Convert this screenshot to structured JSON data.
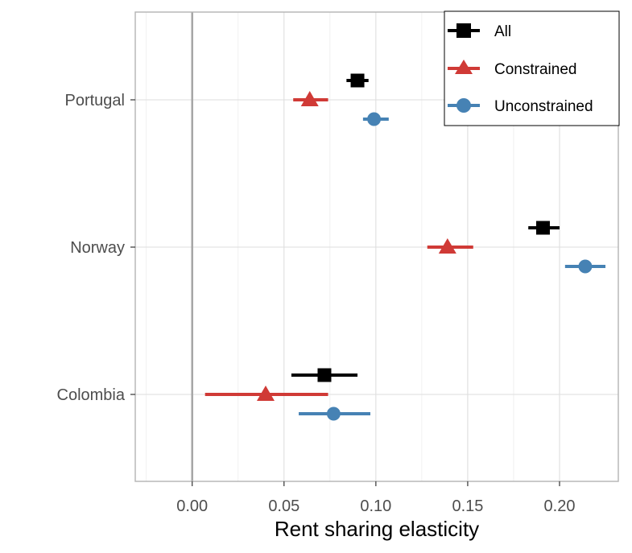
{
  "chart_data": {
    "type": "forest",
    "title": "",
    "xlabel": "Rent sharing elasticity",
    "ylabel": "",
    "xlim": [
      -0.031,
      0.232
    ],
    "x_ticks": [
      0.0,
      0.05,
      0.1,
      0.15,
      0.2
    ],
    "x_tick_labels": [
      "0.00",
      "0.05",
      "0.10",
      "0.15",
      "0.20"
    ],
    "reference_line": 0,
    "categories": [
      "Portugal",
      "Norway",
      "Colombia"
    ],
    "legend_position": "top-right",
    "series": [
      {
        "name": "All",
        "color": "#000000",
        "marker": "square",
        "points": [
          {
            "country": "Portugal",
            "estimate": 0.09,
            "low": 0.084,
            "high": 0.096
          },
          {
            "country": "Norway",
            "estimate": 0.191,
            "low": 0.183,
            "high": 0.2
          },
          {
            "country": "Colombia",
            "estimate": 0.072,
            "low": 0.054,
            "high": 0.09
          }
        ]
      },
      {
        "name": "Constrained",
        "color": "#d03a36",
        "marker": "triangle",
        "points": [
          {
            "country": "Portugal",
            "estimate": 0.064,
            "low": 0.055,
            "high": 0.074
          },
          {
            "country": "Norway",
            "estimate": 0.139,
            "low": 0.128,
            "high": 0.153
          },
          {
            "country": "Colombia",
            "estimate": 0.04,
            "low": 0.007,
            "high": 0.074
          }
        ]
      },
      {
        "name": "Unconstrained",
        "color": "#4682b4",
        "marker": "circle",
        "points": [
          {
            "country": "Portugal",
            "estimate": 0.099,
            "low": 0.093,
            "high": 0.107
          },
          {
            "country": "Norway",
            "estimate": 0.214,
            "low": 0.203,
            "high": 0.225
          },
          {
            "country": "Colombia",
            "estimate": 0.077,
            "low": 0.058,
            "high": 0.097
          }
        ]
      }
    ]
  }
}
